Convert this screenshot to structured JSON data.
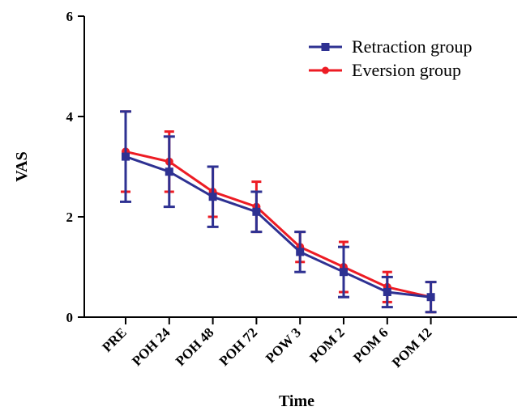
{
  "chart_data": {
    "type": "line",
    "xlabel": "Time",
    "ylabel": "VAS",
    "ylim": [
      0,
      6
    ],
    "yticks": [
      0,
      2,
      4,
      6
    ],
    "categories": [
      "PRE",
      "POH 24",
      "POH 48",
      "POH 72",
      "POW 3",
      "POM 2",
      "POM 6",
      "POM 12"
    ],
    "legend_position": "top-right",
    "grid": false,
    "error_bars": true,
    "series": [
      {
        "name": "Retraction group",
        "color": "#2e3192",
        "marker": "square",
        "values": [
          3.2,
          2.9,
          2.4,
          2.1,
          1.3,
          0.9,
          0.5,
          0.4
        ],
        "err_low": [
          2.3,
          2.2,
          1.8,
          1.7,
          0.9,
          0.4,
          0.2,
          0.1
        ],
        "err_high": [
          4.1,
          3.6,
          3.0,
          2.5,
          1.7,
          1.4,
          0.8,
          0.7
        ]
      },
      {
        "name": "Eversion group",
        "color": "#ed1c24",
        "marker": "circle",
        "values": [
          3.3,
          3.1,
          2.5,
          2.2,
          1.4,
          1.0,
          0.6,
          0.4
        ],
        "err_low": [
          2.5,
          2.5,
          2.0,
          1.7,
          1.1,
          0.5,
          0.3,
          0.1
        ],
        "err_high": [
          4.1,
          3.7,
          3.0,
          2.7,
          1.7,
          1.5,
          0.9,
          0.7
        ]
      }
    ]
  }
}
